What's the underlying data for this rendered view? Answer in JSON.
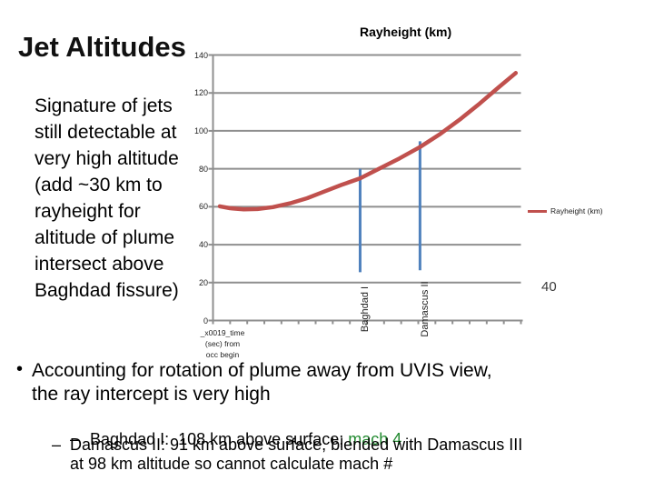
{
  "slide": {
    "title": "Jet Altitudes",
    "left_text_lines": [
      "Signature of jets",
      "still detectable at",
      "very high altitude",
      "(add ~30 km to",
      "rayheight for",
      "altitude of plume",
      "intersect above",
      "Baghdad fissure)"
    ],
    "bullets": {
      "main": {
        "marker": "•",
        "lines": [
          "Accounting for rotation of plume away from UVIS view,",
          "the ray intercept is very high"
        ]
      },
      "sub1": {
        "marker": "–",
        "text_before": "Baghdad I:  108 km above surface; ",
        "highlight": "mach 4",
        "highlight_color": "#218a2f"
      },
      "sub2": {
        "marker": "–",
        "lines": [
          "Damascus II:  91 km above surface, blended with Damascus III",
          "at 98 km altitude so cannot calculate mach #"
        ]
      }
    }
  },
  "chart_data": {
    "type": "line",
    "title": "Rayheight (km)",
    "legend": {
      "label": "Rayheight (km)",
      "position": "right",
      "color": "#C0504D"
    },
    "grid": true,
    "x_axis": {
      "label_lines": [
        "_x0019_time",
        "(sec) from",
        "occ begin"
      ],
      "xlim": [
        0,
        18
      ],
      "tick_count": 19,
      "tick_labels_shown": false
    },
    "y_axis": {
      "ylim": [
        0,
        140
      ],
      "ticks": [
        0,
        20,
        40,
        60,
        80,
        100,
        120,
        140
      ]
    },
    "series": [
      {
        "name": "Rayheight (km)",
        "color": "#C0504D",
        "points": [
          [
            0.4,
            60.2
          ],
          [
            1.0,
            59.2
          ],
          [
            1.8,
            58.6
          ],
          [
            2.6,
            58.8
          ],
          [
            3.5,
            59.8
          ],
          [
            4.5,
            61.8
          ],
          [
            5.5,
            64.5
          ],
          [
            6.5,
            68.0
          ],
          [
            7.5,
            71.5
          ],
          [
            8.6,
            75.0
          ],
          [
            9.7,
            80.0
          ],
          [
            10.9,
            85.5
          ],
          [
            12.1,
            91.5
          ],
          [
            13.3,
            98.5
          ],
          [
            14.5,
            106.5
          ],
          [
            15.6,
            114.5
          ],
          [
            16.7,
            123.0
          ],
          [
            17.7,
            130.5
          ]
        ]
      }
    ],
    "annotations": [
      {
        "label": "Baghdad I",
        "x": 8.6,
        "line_top_km": 80.0,
        "line_bottom_km": 25.5,
        "color": "#4F81BD"
      },
      {
        "label": "Damascus II",
        "x": 12.1,
        "line_top_km": 94.5,
        "line_bottom_km": 26.5,
        "color": "#4F81BD"
      }
    ],
    "stray_label": "40",
    "colors": {
      "grid": "#8f8f8f",
      "axis": "#8f8f8f",
      "tick": "#8f8f8f"
    }
  }
}
